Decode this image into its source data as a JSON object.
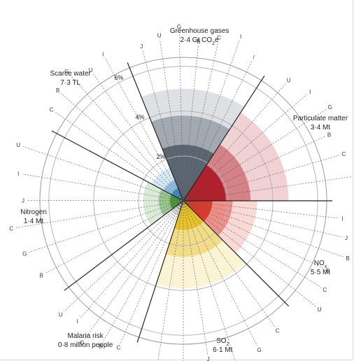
{
  "chart_data": {
    "type": "polar-area",
    "title": "",
    "ring_labels": [
      "2%",
      "4%",
      "6%"
    ],
    "rings": [
      2,
      4,
      6
    ],
    "r_max": 6.4,
    "sectors": [
      {
        "name": "Greenhouse gases",
        "total": "2·4 Gt CO",
        "total_sub": "2",
        "total_suffix": "e",
        "start_deg": -22,
        "end_deg": 33,
        "color": "#5b6672",
        "bands": [
          2.5,
          3.8,
          5.0
        ],
        "line_labels": [
          "J",
          "U",
          "G",
          "B",
          "C",
          "I",
          "/"
        ]
      },
      {
        "name": "Particulate matter",
        "total": "3·4 Mt",
        "start_deg": 33,
        "end_deg": 90,
        "color": "#b3202b",
        "bands": [
          1.9,
          3.0,
          4.7
        ],
        "line_labels": [
          "U",
          "I",
          "G",
          "B",
          "C",
          "I"
        ]
      },
      {
        "name": "NO",
        "name_sub": "x",
        "total": "5·5 Mt",
        "start_deg": 90,
        "end_deg": 135,
        "color": "#e03a2c",
        "bands": [
          1.3,
          2.2,
          3.3
        ],
        "line_labels": [
          "I",
          "J",
          "B",
          "G",
          "C",
          "U"
        ]
      },
      {
        "name": "SO",
        "name_sub": "2",
        "total": "6·1 Mt",
        "start_deg": 135,
        "end_deg": 198,
        "color": "#e8c22a",
        "bands": [
          1.3,
          2.5,
          3.9
        ],
        "line_labels": [
          "C",
          "G",
          "B",
          "J",
          "U",
          "G"
        ]
      },
      {
        "name": "Malaria risk",
        "total": "0·8 million people",
        "start_deg": 198,
        "end_deg": 233,
        "color": "#c8c8c8",
        "bands": [
          0.4,
          0.7,
          1.0
        ],
        "line_labels": [
          "C",
          "B",
          "G",
          "I",
          "U"
        ]
      },
      {
        "name": "Nitrogen",
        "total": "1·4 Mt",
        "start_deg": 233,
        "end_deg": 298,
        "color": "#4a9a3a",
        "bands": [
          0.6,
          1.1,
          1.8
        ],
        "line_labels": [
          "B",
          "G",
          "C",
          "J",
          "I",
          "U"
        ]
      },
      {
        "name": "Scarce water",
        "total": "7·3 TL",
        "start_deg": 298,
        "end_deg": 338,
        "color": "#3a8fd0",
        "bands": [
          0.6,
          1.0,
          1.6
        ],
        "line_labels": [
          "C",
          "B",
          "G",
          "U",
          "I"
        ]
      }
    ]
  }
}
